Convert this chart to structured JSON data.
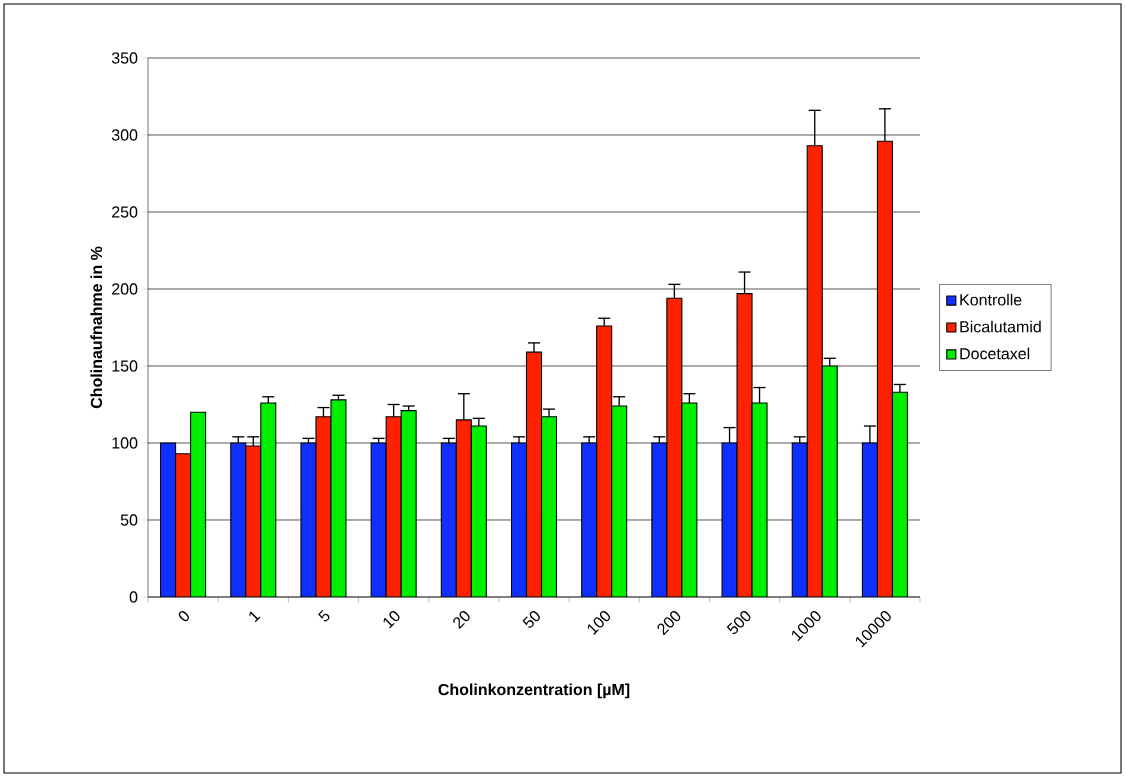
{
  "chart_data": {
    "type": "bar",
    "xlabel": "Cholinkonzentration [µM]",
    "ylabel": "Cholinaufnahme in %",
    "categories": [
      "0",
      "1",
      "5",
      "10",
      "20",
      "50",
      "100",
      "200",
      "500",
      "1000",
      "10000"
    ],
    "series": [
      {
        "name": "Kontrolle",
        "color": "#1030ff",
        "values": [
          100,
          100,
          100,
          100,
          100,
          100,
          100,
          100,
          100,
          100,
          100
        ],
        "errors": [
          null,
          4,
          3,
          3,
          3,
          4,
          4,
          4,
          10,
          4,
          11
        ]
      },
      {
        "name": "Bicalutamid",
        "color": "#ff2200",
        "values": [
          93,
          98,
          117,
          117,
          115,
          159,
          176,
          194,
          197,
          293,
          296
        ],
        "errors": [
          null,
          6,
          6,
          8,
          17,
          6,
          5,
          9,
          14,
          23,
          21
        ]
      },
      {
        "name": "Docetaxel",
        "color": "#00ee00",
        "values": [
          120,
          126,
          128,
          121,
          111,
          117,
          124,
          126,
          126,
          150,
          133
        ],
        "errors": [
          null,
          4,
          3,
          3,
          5,
          5,
          6,
          6,
          10,
          5,
          5
        ]
      }
    ],
    "ylim": [
      0,
      350
    ],
    "yticks": [
      0,
      50,
      100,
      150,
      200,
      250,
      300,
      350
    ],
    "grid": "y",
    "legend": "right"
  }
}
